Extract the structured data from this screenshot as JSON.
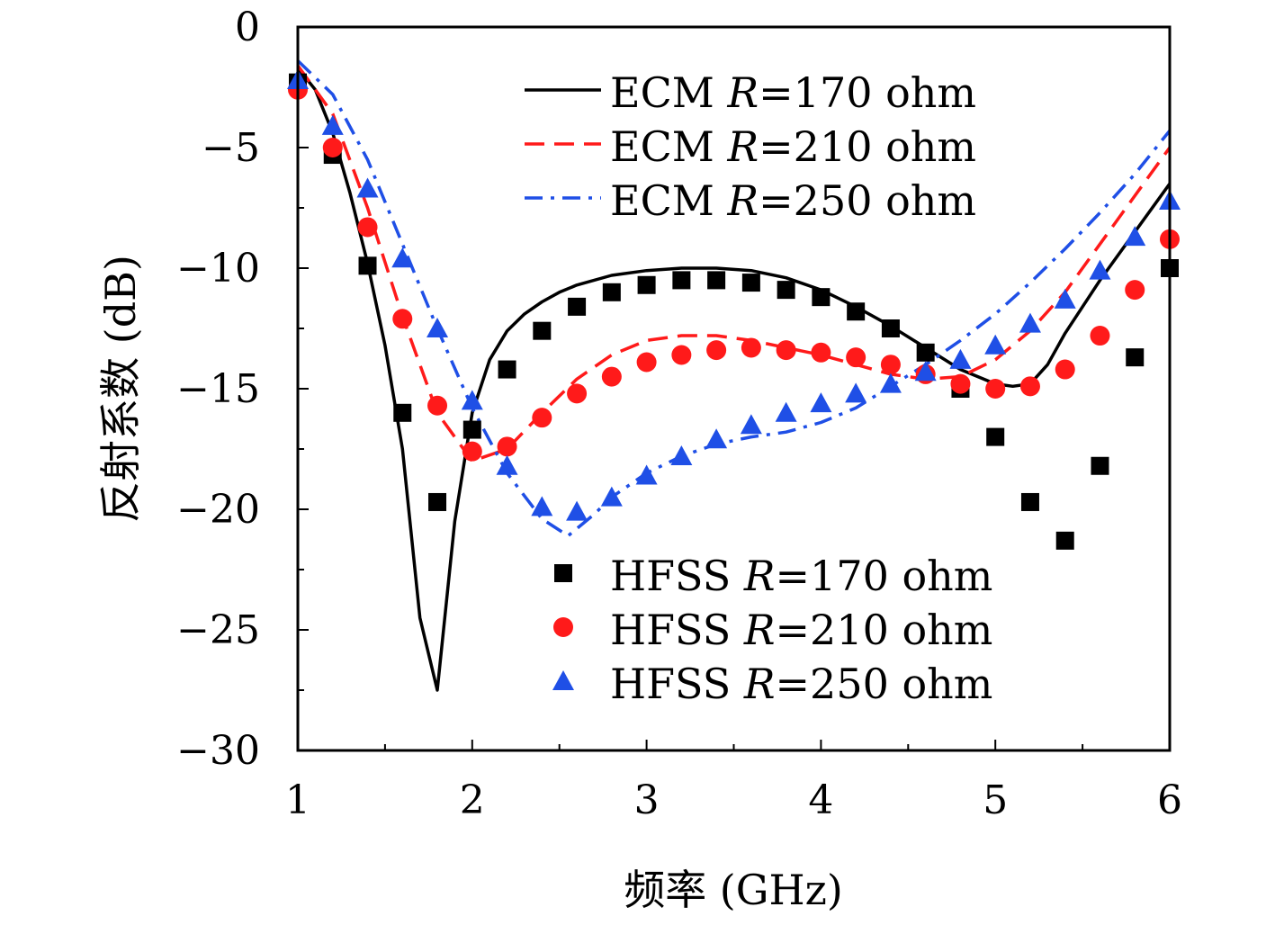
{
  "chart_data": {
    "type": "line",
    "xlabel": "频率 (GHz)",
    "ylabel": "反射系数 (dB)",
    "xlim": [
      1,
      6
    ],
    "ylim": [
      -30,
      0
    ],
    "x_ticks": [
      "1",
      "2",
      "3",
      "4",
      "5",
      "6"
    ],
    "y_ticks": [
      "0",
      "−5",
      "−10",
      "−15",
      "−20",
      "−25",
      "−30"
    ],
    "grid": false,
    "legend_placement": [
      "top-right",
      "bottom-right"
    ],
    "series": [
      {
        "name": "ECM R=170 ohm",
        "label_prefix": "ECM ",
        "label_var": "R",
        "label_suffix": "=170 ohm",
        "style": "solid",
        "color": "#000000",
        "x": [
          1.0,
          1.1,
          1.2,
          1.3,
          1.4,
          1.5,
          1.6,
          1.7,
          1.8,
          1.9,
          2.0,
          2.1,
          2.2,
          2.3,
          2.4,
          2.5,
          2.6,
          2.8,
          3.0,
          3.2,
          3.4,
          3.6,
          3.8,
          4.0,
          4.2,
          4.4,
          4.6,
          4.8,
          5.0,
          5.1,
          5.2,
          5.3,
          5.4,
          5.6,
          5.8,
          6.0
        ],
        "y": [
          -1.7,
          -2.6,
          -4.4,
          -6.9,
          -9.8,
          -13.2,
          -17.5,
          -24.5,
          -27.5,
          -20.5,
          -16.0,
          -13.8,
          -12.6,
          -11.9,
          -11.4,
          -11.0,
          -10.7,
          -10.3,
          -10.1,
          -10.0,
          -10.0,
          -10.1,
          -10.4,
          -10.9,
          -11.6,
          -12.4,
          -13.3,
          -14.2,
          -14.8,
          -14.9,
          -14.8,
          -14.0,
          -12.7,
          -10.5,
          -8.5,
          -6.5
        ]
      },
      {
        "name": "ECM R=210 ohm",
        "label_prefix": "ECM ",
        "label_var": "R",
        "label_suffix": "=210 ohm",
        "style": "dashed",
        "color": "#ff1a1a",
        "x": [
          1.0,
          1.2,
          1.4,
          1.6,
          1.8,
          2.0,
          2.2,
          2.4,
          2.6,
          2.8,
          3.0,
          3.2,
          3.4,
          3.6,
          3.8,
          4.0,
          4.2,
          4.4,
          4.6,
          4.8,
          5.0,
          5.2,
          5.4,
          5.6,
          5.8,
          6.0
        ],
        "y": [
          -1.6,
          -3.6,
          -7.5,
          -12.0,
          -16.0,
          -18.0,
          -17.5,
          -16.0,
          -14.6,
          -13.6,
          -13.0,
          -12.8,
          -12.8,
          -13.0,
          -13.3,
          -13.6,
          -14.0,
          -14.4,
          -14.6,
          -14.5,
          -13.8,
          -12.6,
          -11.0,
          -9.0,
          -7.0,
          -5.0
        ]
      },
      {
        "name": "ECM R=250 ohm",
        "label_prefix": "ECM ",
        "label_var": "R",
        "label_suffix": "=250 ohm",
        "style": "dashdot",
        "color": "#1f4fe6",
        "x": [
          1.0,
          1.2,
          1.4,
          1.6,
          1.8,
          2.0,
          2.2,
          2.4,
          2.55,
          2.7,
          2.8,
          3.0,
          3.2,
          3.4,
          3.6,
          3.8,
          4.0,
          4.2,
          4.4,
          4.6,
          4.8,
          5.0,
          5.2,
          5.4,
          5.6,
          5.8,
          6.0
        ],
        "y": [
          -1.4,
          -2.8,
          -5.5,
          -9.0,
          -12.5,
          -15.8,
          -18.5,
          -20.4,
          -21.1,
          -20.2,
          -19.5,
          -18.5,
          -17.8,
          -17.3,
          -17.0,
          -16.8,
          -16.4,
          -15.8,
          -14.9,
          -14.0,
          -13.0,
          -11.9,
          -10.6,
          -9.2,
          -7.7,
          -6.1,
          -4.3
        ]
      },
      {
        "name": "HFSS R=170 ohm",
        "label_prefix": "HFSS ",
        "label_var": "R",
        "label_suffix": "=170 ohm",
        "marker": "square",
        "color": "#000000",
        "x": [
          1.0,
          1.2,
          1.4,
          1.6,
          1.8,
          2.0,
          2.2,
          2.4,
          2.6,
          2.8,
          3.0,
          3.2,
          3.4,
          3.6,
          3.8,
          4.0,
          4.2,
          4.4,
          4.6,
          4.8,
          5.0,
          5.2,
          5.4,
          5.6,
          5.8,
          6.0
        ],
        "y": [
          -2.3,
          -5.3,
          -9.9,
          -16.0,
          -19.7,
          -16.7,
          -14.2,
          -12.6,
          -11.6,
          -11.0,
          -10.7,
          -10.5,
          -10.5,
          -10.6,
          -10.9,
          -11.2,
          -11.8,
          -12.5,
          -13.5,
          -15.0,
          -17.0,
          -19.7,
          -21.3,
          -18.2,
          -13.7,
          -10.0
        ]
      },
      {
        "name": "HFSS R=210 ohm",
        "label_prefix": "HFSS ",
        "label_var": "R",
        "label_suffix": "=210 ohm",
        "marker": "circle",
        "color": "#ff1a1a",
        "x": [
          1.0,
          1.2,
          1.4,
          1.6,
          1.8,
          2.0,
          2.2,
          2.4,
          2.6,
          2.8,
          3.0,
          3.2,
          3.4,
          3.6,
          3.8,
          4.0,
          4.2,
          4.4,
          4.6,
          4.8,
          5.0,
          5.2,
          5.4,
          5.6,
          5.8,
          6.0
        ],
        "y": [
          -2.6,
          -5.0,
          -8.3,
          -12.1,
          -15.7,
          -17.6,
          -17.4,
          -16.2,
          -15.2,
          -14.5,
          -13.9,
          -13.6,
          -13.4,
          -13.3,
          -13.4,
          -13.5,
          -13.7,
          -14.0,
          -14.4,
          -14.8,
          -15.0,
          -14.9,
          -14.2,
          -12.8,
          -10.9,
          -8.8
        ]
      },
      {
        "name": "HFSS R=250 ohm",
        "label_prefix": "HFSS ",
        "label_var": "R",
        "label_suffix": "=250 ohm",
        "marker": "triangle",
        "color": "#1f4fe6",
        "x": [
          1.0,
          1.2,
          1.4,
          1.6,
          1.8,
          2.0,
          2.2,
          2.4,
          2.6,
          2.8,
          3.0,
          3.2,
          3.4,
          3.6,
          3.8,
          4.0,
          4.2,
          4.4,
          4.6,
          4.8,
          5.0,
          5.2,
          5.4,
          5.6,
          5.8,
          6.0
        ],
        "y": [
          -2.2,
          -4.1,
          -6.7,
          -9.6,
          -12.5,
          -15.5,
          -18.2,
          -19.9,
          -20.1,
          -19.5,
          -18.6,
          -17.8,
          -17.1,
          -16.5,
          -16.0,
          -15.6,
          -15.2,
          -14.8,
          -14.3,
          -13.8,
          -13.2,
          -12.3,
          -11.3,
          -10.1,
          -8.7,
          -7.2
        ]
      }
    ]
  }
}
